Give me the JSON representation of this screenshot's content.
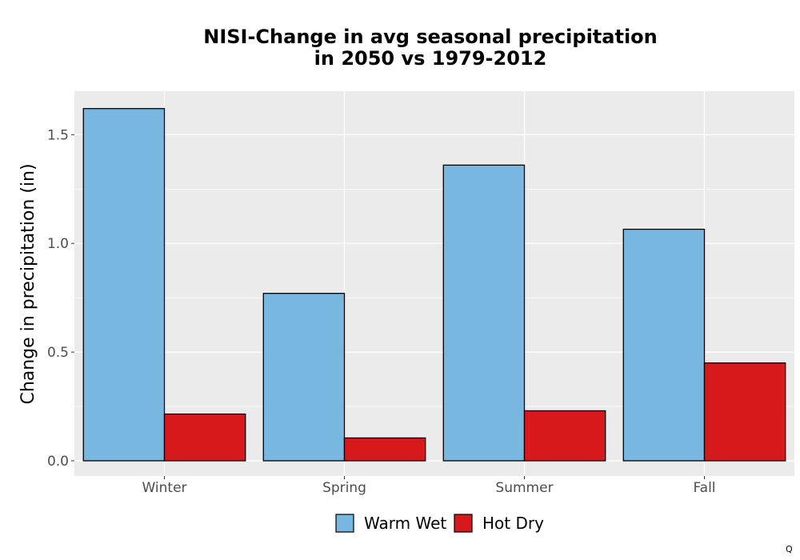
{
  "chart_data": {
    "type": "bar",
    "title_lines": [
      "NISI-Change in avg seasonal precipitation",
      "in 2050 vs 1979-2012"
    ],
    "xlabel": "",
    "ylabel": "Change in precipitation (in)",
    "categories": [
      "Winter",
      "Spring",
      "Summer",
      "Fall"
    ],
    "series": [
      {
        "name": "Warm Wet",
        "color": "#78b7e0",
        "values": [
          1.62,
          0.77,
          1.36,
          1.065
        ]
      },
      {
        "name": "Hot Dry",
        "color": "#d7191c",
        "values": [
          0.215,
          0.105,
          0.23,
          0.45
        ]
      }
    ],
    "ylim": [
      -0.07,
      1.7
    ],
    "yticks": [
      0.0,
      0.5,
      1.0,
      1.5
    ],
    "ytick_labels": [
      "0.0",
      "0.5",
      "1.0",
      "1.5"
    ],
    "grid": true,
    "panel_background": "#ebebeb",
    "legend_position": "bottom"
  },
  "corner_mark": "Q"
}
